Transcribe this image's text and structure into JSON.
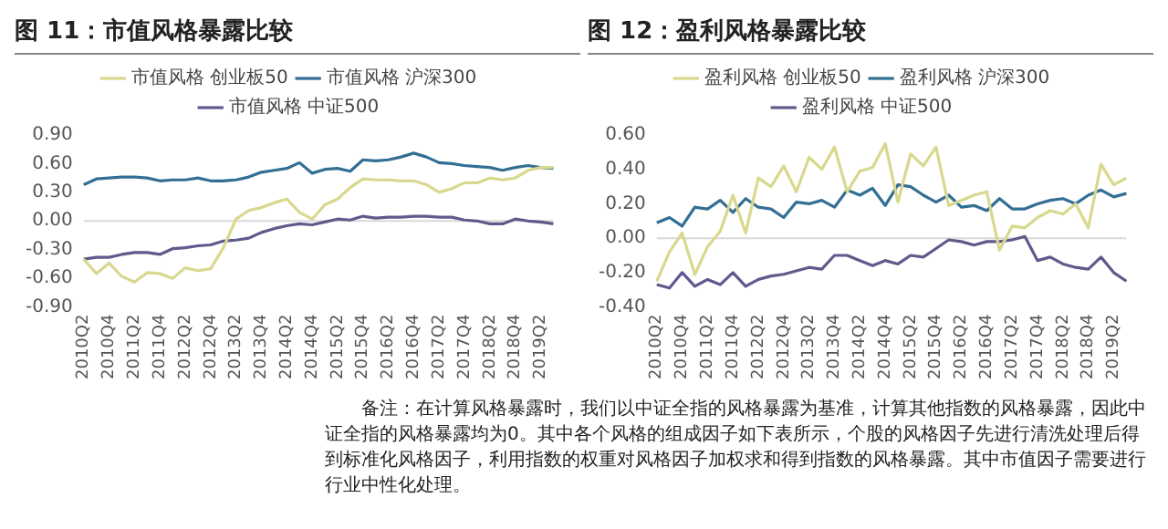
{
  "chart_data": [
    {
      "type": "line",
      "title": "图 11：市值风格暴露比较",
      "categories": [
        "2010Q2",
        null,
        "2010Q4",
        null,
        "2011Q2",
        null,
        "2011Q4",
        null,
        "2012Q2",
        null,
        "2012Q4",
        null,
        "2013Q2",
        null,
        "2013Q4",
        null,
        "2014Q2",
        null,
        "2014Q4",
        null,
        "2015Q2",
        null,
        "2015Q4",
        null,
        "2016Q2",
        null,
        "2016Q4",
        null,
        "2017Q2",
        null,
        "2017Q4",
        null,
        "2018Q2",
        null,
        "2018Q4",
        null,
        "2019Q2",
        null
      ],
      "series": [
        {
          "name": "市值风格 创业板50",
          "color": "#d8d88e",
          "values": [
            -0.4,
            -0.55,
            -0.44,
            -0.58,
            -0.64,
            -0.54,
            -0.55,
            -0.6,
            -0.49,
            -0.52,
            -0.5,
            -0.28,
            0.02,
            0.11,
            0.14,
            0.19,
            0.23,
            0.09,
            0.02,
            0.17,
            0.23,
            0.35,
            0.44,
            0.43,
            0.43,
            0.42,
            0.42,
            0.38,
            0.3,
            0.34,
            0.4,
            0.4,
            0.45,
            0.43,
            0.45,
            0.53,
            0.56,
            0.56
          ]
        },
        {
          "name": "市值风格 沪深300",
          "color": "#336e94",
          "values": [
            0.38,
            0.44,
            0.45,
            0.46,
            0.46,
            0.45,
            0.42,
            0.43,
            0.43,
            0.45,
            0.42,
            0.42,
            0.43,
            0.46,
            0.51,
            0.53,
            0.55,
            0.61,
            0.5,
            0.54,
            0.55,
            0.52,
            0.64,
            0.63,
            0.64,
            0.67,
            0.71,
            0.67,
            0.61,
            0.6,
            0.58,
            0.57,
            0.56,
            0.53,
            0.56,
            0.58,
            0.56,
            0.55
          ]
        },
        {
          "name": "市值风格 中证500",
          "color": "#5f5a8c",
          "values": [
            -0.4,
            -0.38,
            -0.38,
            -0.35,
            -0.33,
            -0.33,
            -0.35,
            -0.29,
            -0.28,
            -0.26,
            -0.25,
            -0.21,
            -0.2,
            -0.18,
            -0.12,
            -0.08,
            -0.05,
            -0.03,
            -0.04,
            -0.01,
            0.02,
            0.01,
            0.05,
            0.03,
            0.04,
            0.04,
            0.05,
            0.05,
            0.04,
            0.04,
            0.01,
            0.0,
            -0.03,
            -0.03,
            0.02,
            0.0,
            -0.01,
            -0.03
          ]
        }
      ],
      "ylim": [
        -0.9,
        0.9
      ],
      "yticks": [
        {
          "value": -0.9,
          "label": "-0.90"
        },
        {
          "value": -0.6,
          "label": "-0.60"
        },
        {
          "value": -0.3,
          "label": "-0.30"
        },
        {
          "value": 0,
          "label": "0.00"
        },
        {
          "value": 0.3,
          "label": "0.30"
        },
        {
          "value": 0.6,
          "label": "0.60"
        },
        {
          "value": 0.9,
          "label": "0.90"
        }
      ],
      "ref_lines": [
        {
          "axis": "y",
          "value": 0,
          "color": "#d9d9d9"
        }
      ],
      "legend": "top",
      "marker": "none",
      "line_style": "solid"
    },
    {
      "type": "line",
      "title": "图 12：盈利风格暴露比较",
      "categories": [
        "2010Q2",
        null,
        "2010Q4",
        null,
        "2011Q2",
        null,
        "2011Q4",
        null,
        "2012Q2",
        null,
        "2012Q4",
        null,
        "2013Q2",
        null,
        "2013Q4",
        null,
        "2014Q2",
        null,
        "2014Q4",
        null,
        "2015Q2",
        null,
        "2015Q4",
        null,
        "2016Q2",
        null,
        "2016Q4",
        null,
        "2017Q2",
        null,
        "2017Q4",
        null,
        "2018Q2",
        null,
        "2018Q4",
        null,
        "2019Q2",
        null
      ],
      "series": [
        {
          "name": "盈利风格 创业板50",
          "color": "#d8d88e",
          "values": [
            -0.25,
            -0.08,
            0.03,
            -0.21,
            -0.05,
            0.04,
            0.25,
            0.03,
            0.35,
            0.3,
            0.42,
            0.27,
            0.47,
            0.4,
            0.53,
            0.27,
            0.39,
            0.41,
            0.55,
            0.21,
            0.49,
            0.42,
            0.53,
            0.19,
            0.22,
            0.25,
            0.27,
            -0.07,
            0.07,
            0.06,
            0.12,
            0.16,
            0.14,
            0.2,
            0.06,
            0.43,
            0.31,
            0.35
          ]
        },
        {
          "name": "盈利风格 沪深300",
          "color": "#336e94",
          "values": [
            0.09,
            0.12,
            0.07,
            0.18,
            0.17,
            0.22,
            0.15,
            0.23,
            0.18,
            0.17,
            0.12,
            0.21,
            0.2,
            0.22,
            0.18,
            0.28,
            0.25,
            0.29,
            0.19,
            0.31,
            0.3,
            0.25,
            0.21,
            0.25,
            0.18,
            0.19,
            0.16,
            0.23,
            0.17,
            0.17,
            0.2,
            0.22,
            0.23,
            0.2,
            0.25,
            0.28,
            0.24,
            0.26
          ]
        },
        {
          "name": "盈利风格 中证500",
          "color": "#5f5a8c",
          "values": [
            -0.27,
            -0.29,
            -0.2,
            -0.28,
            -0.24,
            -0.27,
            -0.2,
            -0.28,
            -0.24,
            -0.22,
            -0.21,
            -0.19,
            -0.17,
            -0.18,
            -0.1,
            -0.1,
            -0.13,
            -0.16,
            -0.13,
            -0.15,
            -0.1,
            -0.11,
            -0.06,
            -0.01,
            -0.02,
            -0.04,
            -0.02,
            -0.02,
            -0.01,
            0.01,
            -0.13,
            -0.11,
            -0.15,
            -0.17,
            -0.18,
            -0.11,
            -0.2,
            -0.25
          ]
        }
      ],
      "ylim": [
        -0.4,
        0.6
      ],
      "yticks": [
        {
          "value": -0.4,
          "label": "-0.40"
        },
        {
          "value": -0.2,
          "label": "-0.20"
        },
        {
          "value": 0,
          "label": "0.00"
        },
        {
          "value": 0.2,
          "label": "0.20"
        },
        {
          "value": 0.4,
          "label": "0.40"
        },
        {
          "value": 0.6,
          "label": "0.60"
        }
      ],
      "ref_lines": [
        {
          "axis": "y",
          "value": 0,
          "color": "#d9d9d9"
        }
      ],
      "legend": "top",
      "marker": "none",
      "line_style": "solid",
      "annotations": [
        "备注：在计算风格暴露时，我们以中证全指的风格暴露为基准，计算其他指数的风格暴露，因此中证全指的风格暴露均为0。其中各个风格的组成因子如下表所示，个股的风格因子先进行清洗处理后得到标准化风格因子，利用指数的权重对风格因子加权求和得到指数的风格暴露。其中市值因子需要进行行业中性化处理。"
      ]
    }
  ]
}
